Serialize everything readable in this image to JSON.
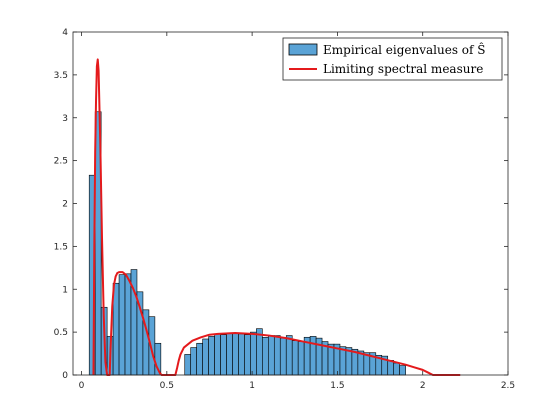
{
  "chart_data": {
    "type": "bar",
    "title": "",
    "xlabel": "",
    "ylabel": "",
    "xlim": [
      -0.05,
      2.5
    ],
    "ylim": [
      0,
      4
    ],
    "xticks": [
      "0",
      "0.5",
      "1",
      "1.5",
      "2",
      "2.5"
    ],
    "yticks": [
      "0",
      "0.5",
      "1",
      "1.5",
      "2",
      "2.5",
      "3",
      "3.5",
      "4"
    ],
    "grid": false,
    "legend_position": "top-right",
    "colors": {
      "bars": "#5aa3d6",
      "bar_edge": "#000000",
      "curve": "#e41a1c"
    },
    "series": [
      {
        "name": "Empirical eigenvalues of Ŝ",
        "kind": "histogram",
        "bin_width": 0.035,
        "bin_start": 0.045,
        "values": [
          2.33,
          3.07,
          0.79,
          0.45,
          1.07,
          1.17,
          1.18,
          1.23,
          0.97,
          0.76,
          0.68,
          0.37,
          0,
          0,
          0,
          0,
          0.24,
          0.32,
          0.37,
          0.42,
          0.45,
          0.48,
          0.47,
          0.49,
          0.49,
          0.48,
          0.47,
          0.5,
          0.54,
          0.44,
          0.46,
          0.46,
          0.43,
          0.46,
          0.4,
          0.39,
          0.44,
          0.45,
          0.43,
          0.39,
          0.36,
          0.36,
          0.33,
          0.32,
          0.3,
          0.28,
          0.26,
          0.26,
          0.23,
          0.22,
          0.17,
          0.14,
          0.11
        ]
      },
      {
        "name": "Limiting spectral measure",
        "kind": "line",
        "x": [
          0.07,
          0.075,
          0.08,
          0.085,
          0.09,
          0.095,
          0.1,
          0.11,
          0.12,
          0.13,
          0.14,
          0.15,
          0.155,
          0.165,
          0.17,
          0.18,
          0.19,
          0.2,
          0.21,
          0.22,
          0.24,
          0.26,
          0.28,
          0.3,
          0.32,
          0.34,
          0.36,
          0.38,
          0.4,
          0.42,
          0.44,
          0.46,
          0.47,
          0.48,
          0.49,
          0.55,
          0.56,
          0.57,
          0.58,
          0.6,
          0.65,
          0.7,
          0.75,
          0.8,
          0.9,
          1.0,
          1.1,
          1.2,
          1.3,
          1.4,
          1.5,
          1.6,
          1.7,
          1.8,
          1.9,
          1.95,
          2.0,
          2.03,
          2.05,
          2.06,
          2.1,
          2.2,
          2.22
        ],
        "y": [
          0,
          1.5,
          2.6,
          3.2,
          3.6,
          3.68,
          3.55,
          2.7,
          1.6,
          0.7,
          0.15,
          0,
          0,
          0,
          0.3,
          0.8,
          1.05,
          1.15,
          1.19,
          1.2,
          1.2,
          1.17,
          1.1,
          1.02,
          0.92,
          0.8,
          0.67,
          0.53,
          0.38,
          0.22,
          0.1,
          0.02,
          0,
          0,
          0,
          0,
          0.08,
          0.17,
          0.24,
          0.32,
          0.4,
          0.44,
          0.47,
          0.48,
          0.49,
          0.48,
          0.46,
          0.43,
          0.39,
          0.35,
          0.31,
          0.27,
          0.22,
          0.17,
          0.12,
          0.09,
          0.06,
          0.03,
          0.01,
          0,
          0,
          0,
          0
        ]
      }
    ]
  }
}
